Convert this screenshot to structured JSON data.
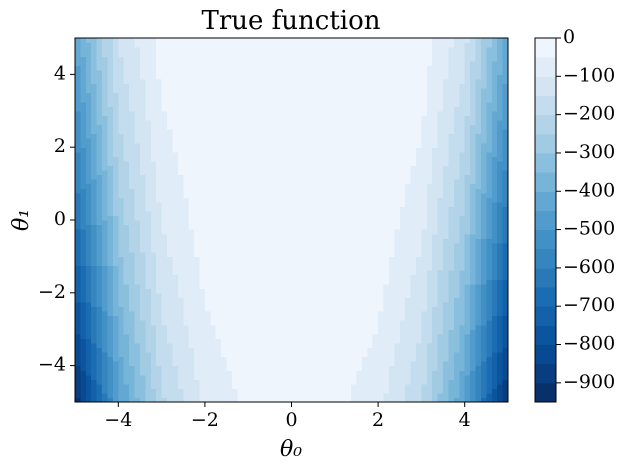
{
  "chart_data": {
    "type": "contour",
    "title": "True function",
    "xlabel": "θ₀",
    "ylabel": "θ₁",
    "x": [
      -5,
      -4,
      -3,
      -2,
      -1,
      0,
      1,
      2,
      3,
      4,
      5
    ],
    "y": [
      -5,
      -4,
      -3,
      -2,
      -1,
      0,
      1,
      2,
      3,
      4,
      5
    ],
    "z": [
      [
        -936,
        -466,
        -212,
        -90,
        -40,
        -26,
        -36,
        -82,
        -200,
        -450,
        -916
      ],
      [
        -877,
        -425,
        -185,
        -73,
        -29,
        -17,
        -25,
        -65,
        -173,
        -409,
        -857
      ],
      [
        -820,
        -386,
        -160,
        -58,
        -20,
        -10,
        -16,
        -50,
        -148,
        -370,
        -800
      ],
      [
        -765,
        -349,
        -137,
        -45,
        -13,
        -5,
        -9,
        -37,
        -125,
        -333,
        -745
      ],
      [
        -712,
        -314,
        -116,
        -34,
        -8,
        -2,
        -4,
        -26,
        -104,
        -298,
        -692
      ],
      [
        -661,
        -281,
        -97,
        -25,
        -5,
        -1,
        -1,
        -17,
        -85,
        -265,
        -641
      ],
      [
        -612,
        -250,
        -80,
        -18,
        -4,
        -2,
        0,
        -10,
        -68,
        -234,
        -592
      ],
      [
        -565,
        -221,
        -65,
        -13,
        -5,
        -5,
        -1,
        -5,
        -53,
        -205,
        -545
      ],
      [
        -520,
        -194,
        -52,
        -10,
        -8,
        -10,
        -4,
        -2,
        -40,
        -178,
        -500
      ],
      [
        -477,
        -169,
        -41,
        -9,
        -13,
        -17,
        -9,
        -1,
        -29,
        -153,
        -457
      ],
      [
        -436,
        -146,
        -32,
        -10,
        -20,
        -26,
        -16,
        -2,
        -20,
        -130,
        -416
      ]
    ],
    "xlim": [
      -5,
      5
    ],
    "ylim": [
      -5,
      5
    ],
    "xticks": [
      {
        "value": -4,
        "label": "−4"
      },
      {
        "value": -2,
        "label": "−2"
      },
      0,
      2,
      4
    ],
    "yticks": [
      {
        "value": -4,
        "label": "−4"
      },
      {
        "value": -2,
        "label": "−2"
      },
      0,
      2,
      4
    ],
    "levels": [
      -950,
      -900,
      -850,
      -800,
      -750,
      -700,
      -650,
      -600,
      -550,
      -500,
      -450,
      -400,
      -350,
      -300,
      -250,
      -200,
      -150,
      -100,
      -50,
      0
    ],
    "colors": [
      "#08306b",
      "#083d7f",
      "#084a91",
      "#0b559f",
      "#1361a9",
      "#1b6db3",
      "#2979b9",
      "#3585bf",
      "#4191c6",
      "#519ccc",
      "#62a8d2",
      "#76b4d8",
      "#8abfdd",
      "#a0cbe2",
      "#b2d3e8",
      "#c3dcee",
      "#d3e4f3",
      "#e0ecf8",
      "#eef5fc"
    ],
    "cticks": [
      {
        "value": 0,
        "label": "0"
      },
      {
        "value": -100,
        "label": "−100"
      },
      {
        "value": -200,
        "label": "−200"
      },
      {
        "value": -300,
        "label": "−300"
      },
      {
        "value": -400,
        "label": "−400"
      },
      {
        "value": -500,
        "label": "−500"
      },
      {
        "value": -600,
        "label": "−600"
      },
      {
        "value": -700,
        "label": "−700"
      },
      {
        "value": -800,
        "label": "−800"
      },
      {
        "value": -900,
        "label": "−900"
      }
    ]
  }
}
